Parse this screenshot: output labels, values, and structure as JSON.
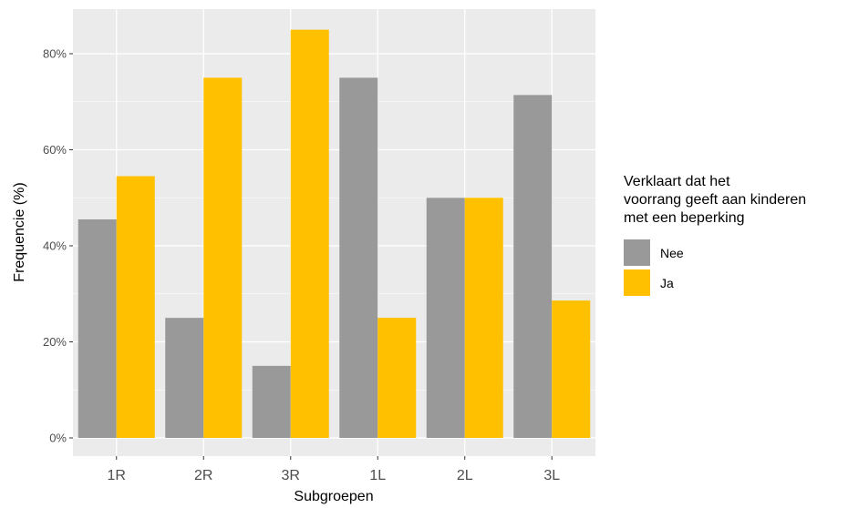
{
  "chart_data": {
    "type": "bar",
    "xlabel": "Subgroepen",
    "ylabel": "Frequencie (%)",
    "categories": [
      "1R",
      "2R",
      "3R",
      "1L",
      "2L",
      "3L"
    ],
    "series": [
      {
        "name": "Nee",
        "color": "#999999",
        "values": [
          45.5,
          25,
          15,
          75,
          50,
          71.4
        ]
      },
      {
        "name": "Ja",
        "color": "#FFC000",
        "values": [
          54.5,
          75,
          85,
          25,
          50,
          28.6
        ]
      }
    ],
    "ylim": [
      0,
      85
    ],
    "y_ticks": [
      0,
      20,
      40,
      60,
      80
    ],
    "y_tick_labels": [
      "0%",
      "20%",
      "40%",
      "60%",
      "80%"
    ],
    "legend": {
      "title_lines": [
        "Verklaart dat het",
        "voorrang geeft aan kinderen",
        "met een beperking"
      ],
      "position": "right"
    },
    "grid": true,
    "panel_background": "#EBEBEB"
  }
}
